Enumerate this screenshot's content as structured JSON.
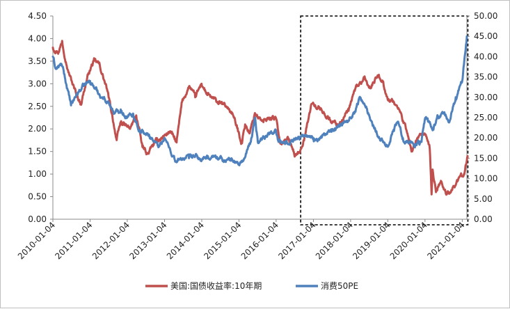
{
  "chart_data": {
    "type": "line",
    "title": "",
    "xlabel": "",
    "ylabel_left": "",
    "ylabel_right": "",
    "x_ticks": [
      "2010-01-04",
      "2011-01-04",
      "2012-01-04",
      "2013-01-04",
      "2014-01-04",
      "2015-01-04",
      "2016-01-04",
      "2017-01-04",
      "2018-01-04",
      "2019-01-04",
      "2020-01-04",
      "2021-01-04"
    ],
    "ylim_left": [
      0,
      4.5
    ],
    "y_ticks_left": [
      "0.00",
      "0.50",
      "1.00",
      "1.50",
      "2.00",
      "2.50",
      "3.00",
      "3.50",
      "4.00",
      "4.50"
    ],
    "ylim_right": [
      0,
      50
    ],
    "y_ticks_right": [
      "0.00",
      "5.00",
      "10.00",
      "15.00",
      "20.00",
      "25.00",
      "30.00",
      "35.00",
      "40.00",
      "45.00",
      "50.00"
    ],
    "grid": false,
    "legend_position": "bottom",
    "highlight_box_x_range": [
      "2016-09-01",
      "2021-02-28"
    ],
    "series": [
      {
        "name": "美国:国债收益率:10年期",
        "axis": "left",
        "color": "#c0504d",
        "x": [
          "2010-01-04",
          "2010-03-01",
          "2010-04-05",
          "2010-06-01",
          "2010-08-01",
          "2010-10-05",
          "2010-12-15",
          "2011-02-08",
          "2011-04-01",
          "2011-06-15",
          "2011-08-10",
          "2011-09-22",
          "2011-11-01",
          "2012-02-01",
          "2012-04-01",
          "2012-06-01",
          "2012-07-25",
          "2012-10-01",
          "2013-01-02",
          "2013-03-01",
          "2013-05-02",
          "2013-06-25",
          "2013-09-05",
          "2013-11-01",
          "2014-01-02",
          "2014-03-01",
          "2014-06-01",
          "2014-09-01",
          "2014-11-01",
          "2015-01-30",
          "2015-03-06",
          "2015-04-20",
          "2015-06-10",
          "2015-09-01",
          "2015-11-01",
          "2016-01-01",
          "2016-02-11",
          "2016-05-01",
          "2016-07-08",
          "2016-09-01",
          "2016-10-01",
          "2016-11-15",
          "2016-12-15",
          "2017-03-14",
          "2017-06-14",
          "2017-09-07",
          "2017-12-15",
          "2018-02-21",
          "2018-05-17",
          "2018-07-15",
          "2018-10-08",
          "2018-11-20",
          "2019-01-03",
          "2019-03-01",
          "2019-05-01",
          "2019-07-01",
          "2019-08-28",
          "2019-10-15",
          "2019-12-31",
          "2020-02-20",
          "2020-03-09",
          "2020-03-19",
          "2020-04-21",
          "2020-06-08",
          "2020-08-04",
          "2020-10-01",
          "2020-12-31",
          "2021-02-01",
          "2021-02-25"
        ],
        "y": [
          3.8,
          3.7,
          3.95,
          3.3,
          2.9,
          2.55,
          3.2,
          3.5,
          3.45,
          2.9,
          2.3,
          1.75,
          2.15,
          2.0,
          2.3,
          1.6,
          1.45,
          1.7,
          1.85,
          1.95,
          1.7,
          2.6,
          2.95,
          2.7,
          3.0,
          2.75,
          2.6,
          2.5,
          2.35,
          1.7,
          2.1,
          1.9,
          2.35,
          2.15,
          2.25,
          2.25,
          1.7,
          1.8,
          1.4,
          1.55,
          1.75,
          2.2,
          2.55,
          2.45,
          2.2,
          2.1,
          2.4,
          2.9,
          3.1,
          2.9,
          3.2,
          3.05,
          2.65,
          2.6,
          2.4,
          2.0,
          1.5,
          1.75,
          1.9,
          1.55,
          0.55,
          1.1,
          0.6,
          0.85,
          0.55,
          0.7,
          0.95,
          1.1,
          1.4
        ]
      },
      {
        "name": "消费50PE",
        "axis": "right",
        "color": "#4f81bd",
        "x": [
          "2010-01-04",
          "2010-02-01",
          "2010-04-01",
          "2010-05-01",
          "2010-07-01",
          "2010-09-01",
          "2010-11-10",
          "2011-01-04",
          "2011-03-01",
          "2011-05-01",
          "2011-07-01",
          "2011-09-01",
          "2011-11-01",
          "2012-01-04",
          "2012-03-01",
          "2012-05-01",
          "2012-07-01",
          "2012-09-01",
          "2012-11-01",
          "2013-01-04",
          "2013-03-01",
          "2013-05-01",
          "2013-07-01",
          "2013-09-01",
          "2013-11-01",
          "2014-01-04",
          "2014-03-01",
          "2014-05-01",
          "2014-07-01",
          "2014-09-01",
          "2014-11-01",
          "2015-01-04",
          "2015-03-01",
          "2015-05-01",
          "2015-06-12",
          "2015-07-08",
          "2015-08-25",
          "2015-10-15",
          "2015-12-31",
          "2016-01-28",
          "2016-04-01",
          "2016-06-01",
          "2016-08-01",
          "2016-10-01",
          "2016-12-01",
          "2017-01-04",
          "2017-03-01",
          "2017-05-01",
          "2017-07-01",
          "2017-09-01",
          "2017-11-01",
          "2018-01-04",
          "2018-02-09",
          "2018-04-01",
          "2018-06-01",
          "2018-08-01",
          "2018-10-29",
          "2018-12-31",
          "2019-03-01",
          "2019-04-15",
          "2019-06-01",
          "2019-08-01",
          "2019-10-01",
          "2019-12-01",
          "2020-01-10",
          "2020-02-03",
          "2020-03-23",
          "2020-05-01",
          "2020-07-01",
          "2020-09-01",
          "2020-11-01",
          "2020-12-15",
          "2021-01-04",
          "2021-01-20",
          "2021-02-18"
        ],
        "y": [
          40,
          37,
          38,
          35,
          28,
          31,
          33,
          34,
          32,
          30,
          29,
          26,
          27,
          25,
          26,
          22,
          21,
          20,
          18,
          20,
          17,
          14,
          15,
          15,
          15.5,
          14.5,
          15,
          15.5,
          15,
          14.5,
          14.5,
          13.5,
          15,
          19,
          25,
          19,
          20,
          21,
          22,
          19,
          18.5,
          19.5,
          20,
          20.5,
          20.5,
          20,
          19.5,
          21,
          21.5,
          23,
          24,
          25,
          26,
          30,
          27.5,
          24,
          19.5,
          18,
          22,
          24,
          20,
          19,
          18.5,
          19,
          25,
          24,
          22,
          25,
          26,
          24,
          30,
          33,
          34,
          38,
          45
        ]
      }
    ]
  }
}
